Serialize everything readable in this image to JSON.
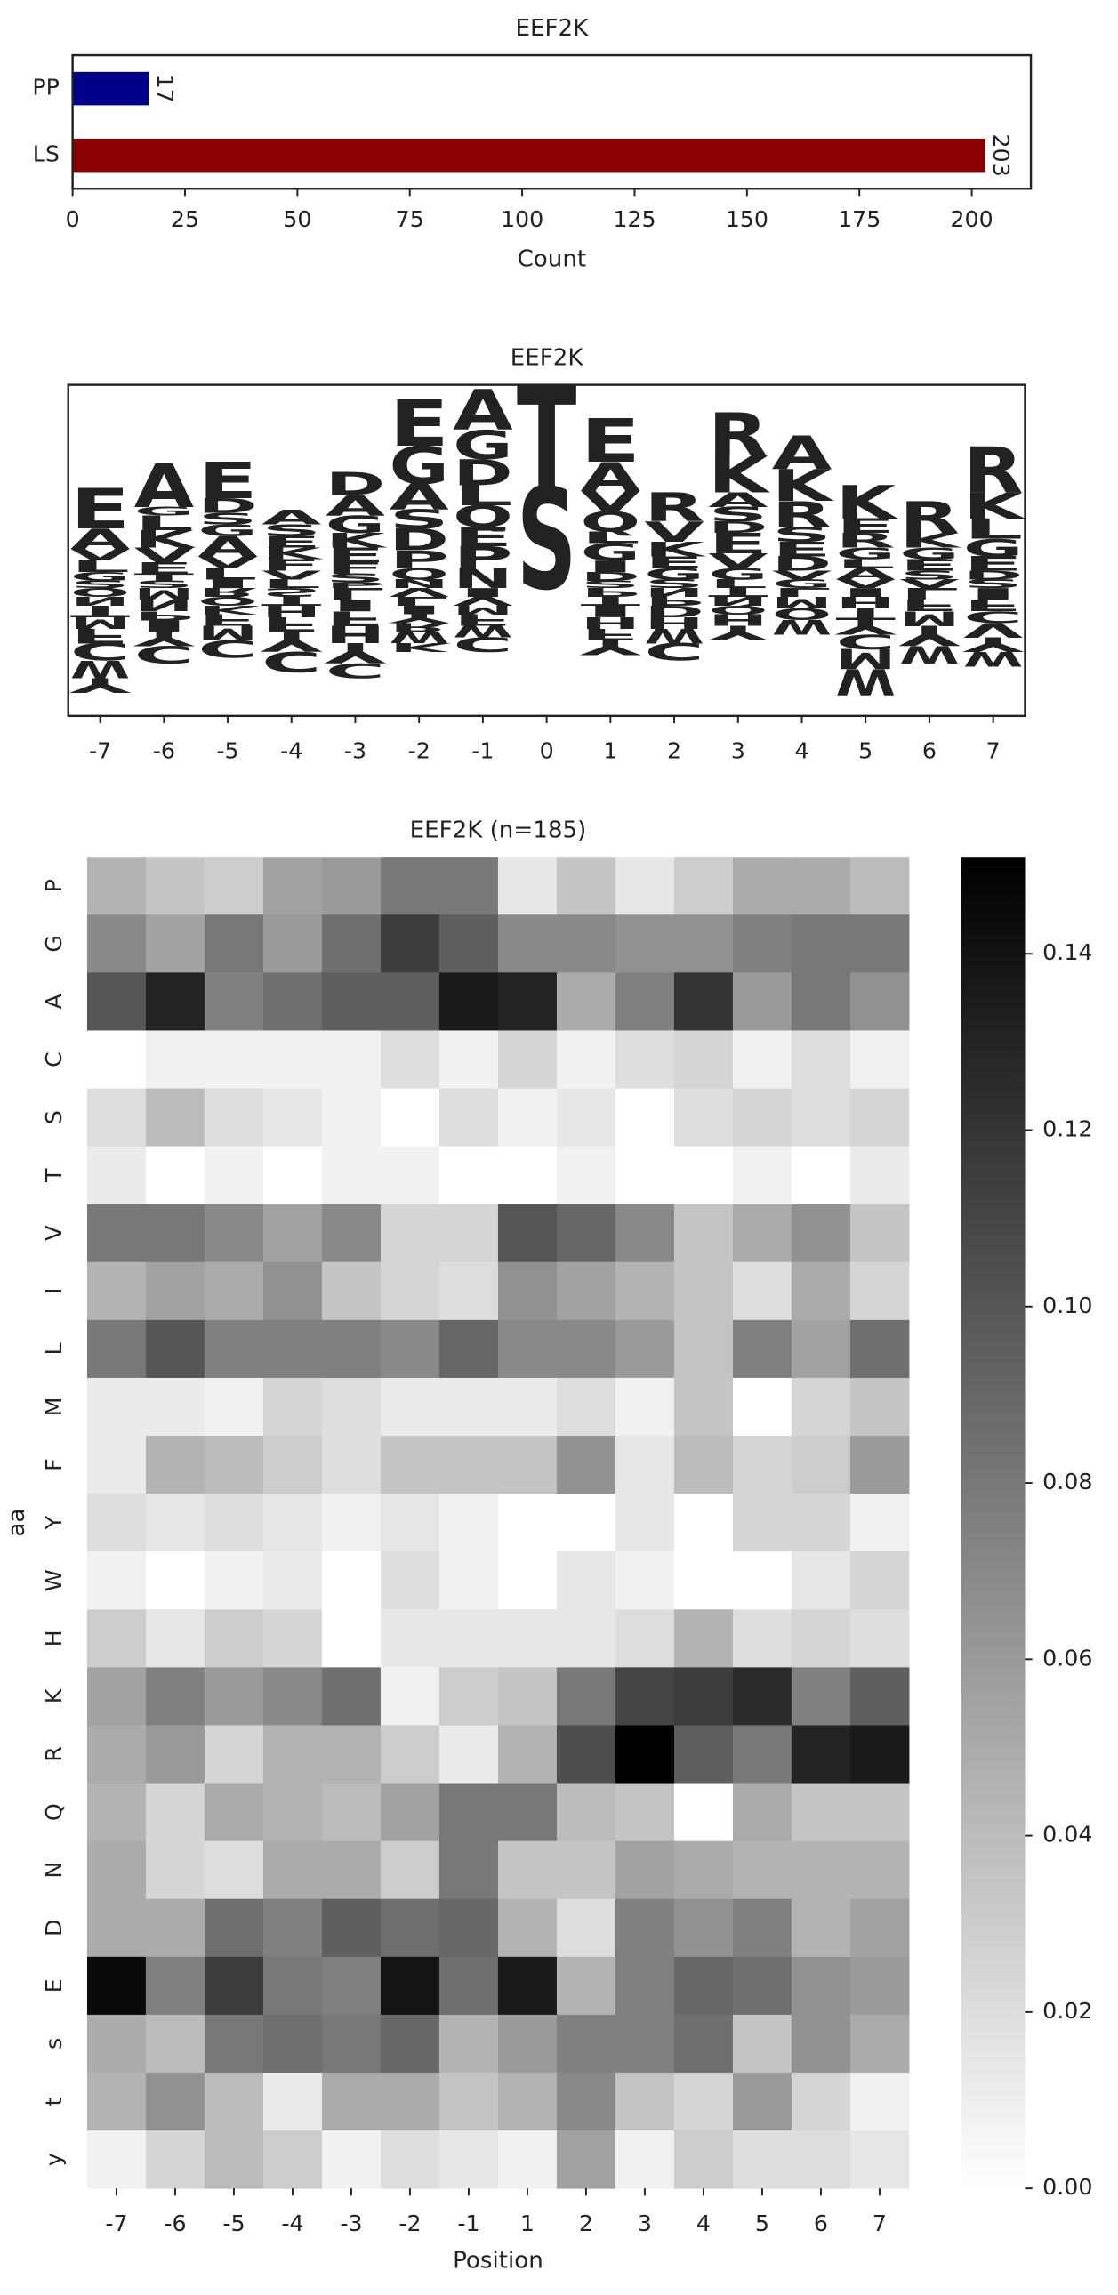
{
  "chart_data": [
    {
      "type": "bar",
      "orientation": "horizontal",
      "title": "EEF2K",
      "categories": [
        "PP",
        "LS"
      ],
      "values": [
        17,
        203
      ],
      "colors": [
        "#00008b",
        "#8b0000"
      ],
      "xlim": [
        0,
        213.15
      ],
      "xticks": [
        0,
        25,
        50,
        75,
        100,
        125,
        150,
        175,
        200
      ],
      "xlabel": "Count",
      "data_labels": true
    },
    {
      "type": "logo",
      "title": "EEF2K",
      "categories": [
        -7,
        -6,
        -5,
        -4,
        -3,
        -2,
        -1,
        0,
        1,
        2,
        3,
        4,
        5,
        6,
        7
      ],
      "ylim": [
        -0.88,
        1.4
      ],
      "letter_colors": {
        "A": "#008000",
        "G": "#008000",
        "E": "#dc143c",
        "D": "#dc143c",
        "K": "#0000ff",
        "R": "#0000ff",
        "H": "#0000ff",
        "S": "#800080",
        "T": "#800080",
        "Q": "#800080",
        "N": "#800080",
        "P": "#000000",
        "V": "#daa520",
        "L": "#daa520",
        "I": "#daa520",
        "M": "#daa520",
        "F": "#daa520",
        "W": "#daa520",
        "C": "#daa520",
        "Y": "#8b4513"
      },
      "stacks": [
        [
          [
            "S",
            0.05
          ],
          [
            "G",
            0.06
          ],
          [
            "L",
            0.08
          ],
          [
            "V",
            0.08
          ],
          [
            "A",
            0.14
          ],
          [
            "E",
            0.28
          ],
          [
            "Q",
            -0.06
          ],
          [
            "N",
            -0.06
          ],
          [
            "T",
            -0.08
          ],
          [
            "M",
            -0.08
          ],
          [
            "F",
            -0.1
          ],
          [
            "C",
            -0.12
          ],
          [
            "W",
            -0.12
          ],
          [
            "Y",
            -0.1
          ]
        ],
        [
          [
            "S",
            0.05
          ],
          [
            "T",
            0.05
          ],
          [
            "E",
            0.08
          ],
          [
            "V",
            0.1
          ],
          [
            "K",
            0.12
          ],
          [
            "L",
            0.1
          ],
          [
            "G",
            0.06
          ],
          [
            "A",
            0.3
          ],
          [
            "M",
            -0.08
          ],
          [
            "N",
            -0.08
          ],
          [
            "P",
            -0.06
          ],
          [
            "I",
            -0.08
          ],
          [
            "Y",
            -0.1
          ],
          [
            "C",
            -0.12
          ]
        ],
        [
          [
            "I",
            0.06
          ],
          [
            "L",
            0.08
          ],
          [
            "V",
            0.08
          ],
          [
            "A",
            0.14
          ],
          [
            "G",
            0.08
          ],
          [
            "S",
            0.08
          ],
          [
            "D",
            0.1
          ],
          [
            "E",
            0.25
          ],
          [
            "R",
            -0.06
          ],
          [
            "Q",
            -0.06
          ],
          [
            "K",
            -0.06
          ],
          [
            "F",
            -0.08
          ],
          [
            "M",
            -0.1
          ],
          [
            "C",
            -0.12
          ]
        ],
        [
          [
            "L",
            0.06
          ],
          [
            "V",
            0.06
          ],
          [
            "F",
            0.08
          ],
          [
            "K",
            0.08
          ],
          [
            "E",
            0.08
          ],
          [
            "S",
            0.08
          ],
          [
            "A",
            0.1
          ],
          [
            "S",
            -0.06
          ],
          [
            "T",
            -0.06
          ],
          [
            "H",
            -0.08
          ],
          [
            "F",
            -0.1
          ],
          [
            "Y",
            -0.14
          ],
          [
            "C",
            -0.14
          ]
        ],
        [
          [
            "P",
            0.04
          ],
          [
            "S",
            0.06
          ],
          [
            "F",
            0.08
          ],
          [
            "E",
            0.1
          ],
          [
            "K",
            0.1
          ],
          [
            "G",
            0.12
          ],
          [
            "A",
            0.14
          ],
          [
            "D",
            0.16
          ],
          [
            "L",
            -0.08
          ],
          [
            "I",
            -0.08
          ],
          [
            "F",
            -0.1
          ],
          [
            "H",
            -0.12
          ],
          [
            "Y",
            -0.14
          ],
          [
            "C",
            -0.1
          ]
        ],
        [
          [
            "N",
            0.06
          ],
          [
            "Q",
            0.08
          ],
          [
            "P",
            0.12
          ],
          [
            "D",
            0.15
          ],
          [
            "S",
            0.13
          ],
          [
            "A",
            0.18
          ],
          [
            "G",
            0.26
          ],
          [
            "E",
            0.32
          ],
          [
            "V",
            -0.06
          ],
          [
            "L",
            -0.06
          ],
          [
            "I",
            -0.06
          ],
          [
            "Y",
            -0.06
          ],
          [
            "R",
            -0.06
          ],
          [
            "W",
            -0.08
          ],
          [
            "K",
            -0.06
          ]
        ],
        [
          [
            "N",
            0.14
          ],
          [
            "P",
            0.15
          ],
          [
            "E",
            0.13
          ],
          [
            "Q",
            0.15
          ],
          [
            "L",
            0.14
          ],
          [
            "D",
            0.18
          ],
          [
            "G",
            0.2
          ],
          [
            "A",
            0.28
          ],
          [
            "I",
            -0.06
          ],
          [
            "V",
            -0.06
          ],
          [
            "M",
            -0.06
          ],
          [
            "F",
            -0.08
          ],
          [
            "W",
            -0.08
          ],
          [
            "C",
            -0.1
          ]
        ],
        [
          [
            "S",
            0.7
          ],
          [
            "T",
            0.7
          ]
        ],
        [
          [
            "S",
            0.05
          ],
          [
            "D",
            0.06
          ],
          [
            "I",
            0.08
          ],
          [
            "G",
            0.12
          ],
          [
            "L",
            0.08
          ],
          [
            "Q",
            0.14
          ],
          [
            "V",
            0.14
          ],
          [
            "A",
            0.2
          ],
          [
            "E",
            0.3
          ],
          [
            "P",
            -0.06
          ],
          [
            "T",
            -0.06
          ],
          [
            "I",
            -0.08
          ],
          [
            "H",
            -0.08
          ],
          [
            "F",
            -0.08
          ],
          [
            "Y",
            -0.1
          ]
        ],
        [
          [
            "S",
            0.06
          ],
          [
            "G",
            0.08
          ],
          [
            "E",
            0.08
          ],
          [
            "K",
            0.1
          ],
          [
            "V",
            0.14
          ],
          [
            "R",
            0.2
          ],
          [
            "N",
            -0.06
          ],
          [
            "P",
            -0.06
          ],
          [
            "D",
            -0.08
          ],
          [
            "H",
            -0.08
          ],
          [
            "W",
            -0.1
          ],
          [
            "C",
            -0.12
          ]
        ],
        [
          [
            "L",
            0.06
          ],
          [
            "G",
            0.08
          ],
          [
            "V",
            0.1
          ],
          [
            "E",
            0.14
          ],
          [
            "D",
            0.08
          ],
          [
            "S",
            0.1
          ],
          [
            "A",
            0.1
          ],
          [
            "K",
            0.25
          ],
          [
            "R",
            0.3
          ],
          [
            "T",
            -0.06
          ],
          [
            "N",
            -0.06
          ],
          [
            "Q",
            -0.06
          ],
          [
            "H",
            -0.08
          ],
          [
            "Y",
            -0.1
          ]
        ],
        [
          [
            "G",
            0.06
          ],
          [
            "V",
            0.06
          ],
          [
            "D",
            0.1
          ],
          [
            "E",
            0.1
          ],
          [
            "S",
            0.1
          ],
          [
            "R",
            0.18
          ],
          [
            "K",
            0.22
          ],
          [
            "A",
            0.23
          ],
          [
            "L",
            -0.06
          ],
          [
            "M",
            -0.08
          ],
          [
            "Q",
            -0.08
          ],
          [
            "W",
            -0.1
          ]
        ],
        [
          [
            "V",
            0.06
          ],
          [
            "A",
            0.08
          ],
          [
            "L",
            0.06
          ],
          [
            "G",
            0.08
          ],
          [
            "R",
            0.1
          ],
          [
            "E",
            0.1
          ],
          [
            "K",
            0.23
          ],
          [
            "I",
            -0.06
          ],
          [
            "H",
            -0.08
          ],
          [
            "T",
            -0.08
          ],
          [
            "Y",
            -0.1
          ],
          [
            "C",
            -0.1
          ],
          [
            "M",
            -0.14
          ],
          [
            "W",
            -0.18
          ]
        ],
        [
          [
            "V",
            0.06
          ],
          [
            "S",
            0.06
          ],
          [
            "E",
            0.08
          ],
          [
            "G",
            0.08
          ],
          [
            "K",
            0.1
          ],
          [
            "R",
            0.22
          ],
          [
            "L",
            -0.08
          ],
          [
            "F",
            -0.08
          ],
          [
            "M",
            -0.1
          ],
          [
            "Y",
            -0.14
          ],
          [
            "W",
            -0.12
          ]
        ],
        [
          [
            "S",
            0.06
          ],
          [
            "D",
            0.06
          ],
          [
            "E",
            0.1
          ],
          [
            "G",
            0.12
          ],
          [
            "L",
            0.14
          ],
          [
            "K",
            0.18
          ],
          [
            "R",
            0.32
          ],
          [
            "I",
            -0.08
          ],
          [
            "F",
            -0.08
          ],
          [
            "C",
            -0.08
          ],
          [
            "V",
            -0.1
          ],
          [
            "Y",
            -0.1
          ],
          [
            "W",
            -0.1
          ]
        ]
      ]
    },
    {
      "type": "heatmap",
      "title": "EEF2K (n=185)",
      "xlabel": "Position",
      "ylabel": "aa",
      "colormap": "Greys",
      "x": [
        -7,
        -6,
        -5,
        -4,
        -3,
        -2,
        -1,
        1,
        2,
        3,
        4,
        5,
        6,
        7
      ],
      "categories": [
        "P",
        "G",
        "A",
        "C",
        "S",
        "T",
        "V",
        "I",
        "L",
        "M",
        "F",
        "Y",
        "W",
        "H",
        "K",
        "R",
        "Q",
        "N",
        "D",
        "E",
        "s",
        "t",
        "y"
      ],
      "clim": [
        0,
        0.151
      ],
      "cticks": [
        {
          "value": 0,
          "label": "0.00"
        },
        0.02,
        0.04,
        0.06,
        0.08,
        {
          "value": 0.1,
          "label": "0.10"
        },
        0.12,
        0.14
      ],
      "values": [
        [
          0.045,
          0.035,
          0.03,
          0.055,
          0.06,
          0.08,
          0.08,
          0.015,
          0.035,
          0.015,
          0.03,
          0.05,
          0.05,
          0.04
        ],
        [
          0.07,
          0.055,
          0.08,
          0.06,
          0.085,
          0.115,
          0.095,
          0.07,
          0.07,
          0.065,
          0.065,
          0.075,
          0.08,
          0.08
        ],
        [
          0.1,
          0.13,
          0.075,
          0.085,
          0.095,
          0.095,
          0.135,
          0.13,
          0.05,
          0.075,
          0.12,
          0.06,
          0.08,
          0.065
        ],
        [
          0,
          0.008,
          0.008,
          0.008,
          0.008,
          0.02,
          0.008,
          0.025,
          0.008,
          0.02,
          0.025,
          0.008,
          0.02,
          0.008
        ],
        [
          0.02,
          0.04,
          0.02,
          0.015,
          0.008,
          0,
          0.02,
          0.008,
          0.015,
          0,
          0.02,
          0.025,
          0.02,
          0.025
        ],
        [
          0.012,
          0,
          0.008,
          0,
          0.008,
          0.008,
          0,
          0,
          0.008,
          0,
          0,
          0.008,
          0,
          0.012
        ],
        [
          0.08,
          0.08,
          0.07,
          0.055,
          0.07,
          0.025,
          0.025,
          0.1,
          0.09,
          0.07,
          0.035,
          0.05,
          0.065,
          0.035
        ],
        [
          0.045,
          0.055,
          0.05,
          0.065,
          0.035,
          0.025,
          0.02,
          0.065,
          0.055,
          0.045,
          0.035,
          0.02,
          0.05,
          0.025
        ],
        [
          0.08,
          0.1,
          0.075,
          0.075,
          0.075,
          0.07,
          0.09,
          0.07,
          0.07,
          0.06,
          0.035,
          0.075,
          0.055,
          0.085
        ],
        [
          0.012,
          0.012,
          0.008,
          0.025,
          0.02,
          0.012,
          0.012,
          0.012,
          0.02,
          0.008,
          0.035,
          0,
          0.025,
          0.035
        ],
        [
          0.012,
          0.045,
          0.04,
          0.03,
          0.02,
          0.035,
          0.035,
          0.035,
          0.065,
          0.015,
          0.04,
          0.025,
          0.03,
          0.06
        ],
        [
          0.02,
          0.015,
          0.02,
          0.015,
          0.008,
          0.015,
          0.008,
          0,
          0,
          0.015,
          0,
          0.025,
          0.025,
          0.008
        ],
        [
          0.008,
          0,
          0.008,
          0.012,
          0,
          0.02,
          0.008,
          0,
          0.015,
          0.008,
          0,
          0,
          0.015,
          0.025
        ],
        [
          0.03,
          0.015,
          0.03,
          0.025,
          0,
          0.015,
          0.015,
          0.015,
          0.015,
          0.02,
          0.045,
          0.02,
          0.025,
          0.02
        ],
        [
          0.055,
          0.075,
          0.06,
          0.07,
          0.085,
          0.008,
          0.03,
          0.035,
          0.08,
          0.11,
          0.115,
          0.125,
          0.075,
          0.095
        ],
        [
          0.05,
          0.06,
          0.025,
          0.045,
          0.045,
          0.03,
          0.012,
          0.045,
          0.105,
          0.151,
          0.095,
          0.08,
          0.13,
          0.135
        ],
        [
          0.045,
          0.025,
          0.05,
          0.045,
          0.04,
          0.055,
          0.08,
          0.08,
          0.04,
          0.035,
          0,
          0.05,
          0.035,
          0.035
        ],
        [
          0.05,
          0.025,
          0.02,
          0.05,
          0.05,
          0.03,
          0.08,
          0.035,
          0.035,
          0.055,
          0.05,
          0.045,
          0.045,
          0.045
        ],
        [
          0.05,
          0.05,
          0.085,
          0.075,
          0.095,
          0.085,
          0.09,
          0.045,
          0.02,
          0.075,
          0.065,
          0.075,
          0.045,
          0.055
        ],
        [
          0.145,
          0.075,
          0.115,
          0.08,
          0.075,
          0.14,
          0.085,
          0.135,
          0.045,
          0.075,
          0.09,
          0.085,
          0.065,
          0.06
        ],
        [
          0.05,
          0.04,
          0.08,
          0.085,
          0.08,
          0.09,
          0.045,
          0.06,
          0.075,
          0.075,
          0.085,
          0.035,
          0.065,
          0.05
        ],
        [
          0.045,
          0.065,
          0.04,
          0.012,
          0.05,
          0.05,
          0.035,
          0.045,
          0.07,
          0.035,
          0.025,
          0.06,
          0.025,
          0.008
        ],
        [
          0.008,
          0.025,
          0.04,
          0.03,
          0.008,
          0.02,
          0.015,
          0.008,
          0.055,
          0.008,
          0.03,
          0.02,
          0.02,
          0.015
        ]
      ]
    }
  ]
}
